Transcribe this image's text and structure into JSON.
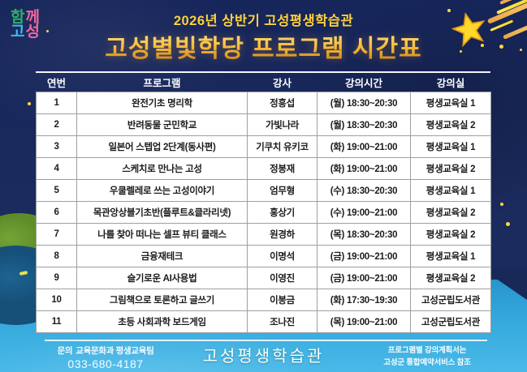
{
  "logo": {
    "chars": [
      "함",
      "께",
      "고",
      "성"
    ]
  },
  "header": {
    "subtitle": "2026년 상반기 고성평생학습관",
    "title": "고성별빛학당 프로그램 시간표"
  },
  "table": {
    "columns": [
      "연번",
      "프로그램",
      "강사",
      "강의시간",
      "강의실"
    ],
    "rows": [
      [
        "1",
        "완전기초 명리학",
        "정흥섭",
        "(월) 18:30~20:30",
        "평생교육실 1"
      ],
      [
        "2",
        "반려동물 군민학교",
        "가빛나라",
        "(월) 18:30~20:30",
        "평생교육실 2"
      ],
      [
        "3",
        "일본어 스텝업 2단계(동사편)",
        "기쿠치 유키코",
        "(화) 19:00~21:00",
        "평생교육실 1"
      ],
      [
        "4",
        "스케치로 만나는 고성",
        "정봉재",
        "(화) 19:00~21:00",
        "평생교육실 2"
      ],
      [
        "5",
        "우쿨렐레로 쓰는 고성이야기",
        "엄무형",
        "(수) 18:30~20:30",
        "평생교육실 1"
      ],
      [
        "6",
        "목관앙상블기초반(플루트&클라리넷)",
        "홍상기",
        "(수) 19:00~21:00",
        "평생교육실 2"
      ],
      [
        "7",
        "나를 찾아 떠나는 셀프 뷰티 클래스",
        "원경하",
        "(목) 18:30~20:30",
        "평생교육실 2"
      ],
      [
        "8",
        "금융재테크",
        "이명석",
        "(금) 19:00~21:00",
        "평생교육실 1"
      ],
      [
        "9",
        "슬기로운 AI사용법",
        "이영진",
        "(금) 19:00~21:00",
        "평생교육실 2"
      ],
      [
        "10",
        "그림책으로 토론하고 글쓰기",
        "이봉금",
        "(화) 17:30~19:30",
        "고성군립도서관"
      ],
      [
        "11",
        "초등 사회과학 보드게임",
        "조나진",
        "(목) 19:00~21:00",
        "고성군립도서관"
      ]
    ]
  },
  "footer": {
    "contact_label": "문의",
    "contact_team": "교육문화과 평생교육팀",
    "contact_phone": "033-680-4187",
    "brand": "고성평생학습관",
    "note_line1": "프로그램별 강의계획서는",
    "note_line2": "고성군 통합예약서비스 참조"
  },
  "colors": {
    "sky_navy": "#1b2b5d",
    "sea_blue": "#2fa3d9",
    "hill_green": "#67962f",
    "hill_teal": "#1a5a85",
    "title_yellow": "#ffd23f",
    "title_gold": "#f7b733",
    "star_yellow": "#ffd829",
    "logo_green": "#2fae64",
    "logo_pink": "#f2679c",
    "logo_blue": "#3cb9f0"
  }
}
